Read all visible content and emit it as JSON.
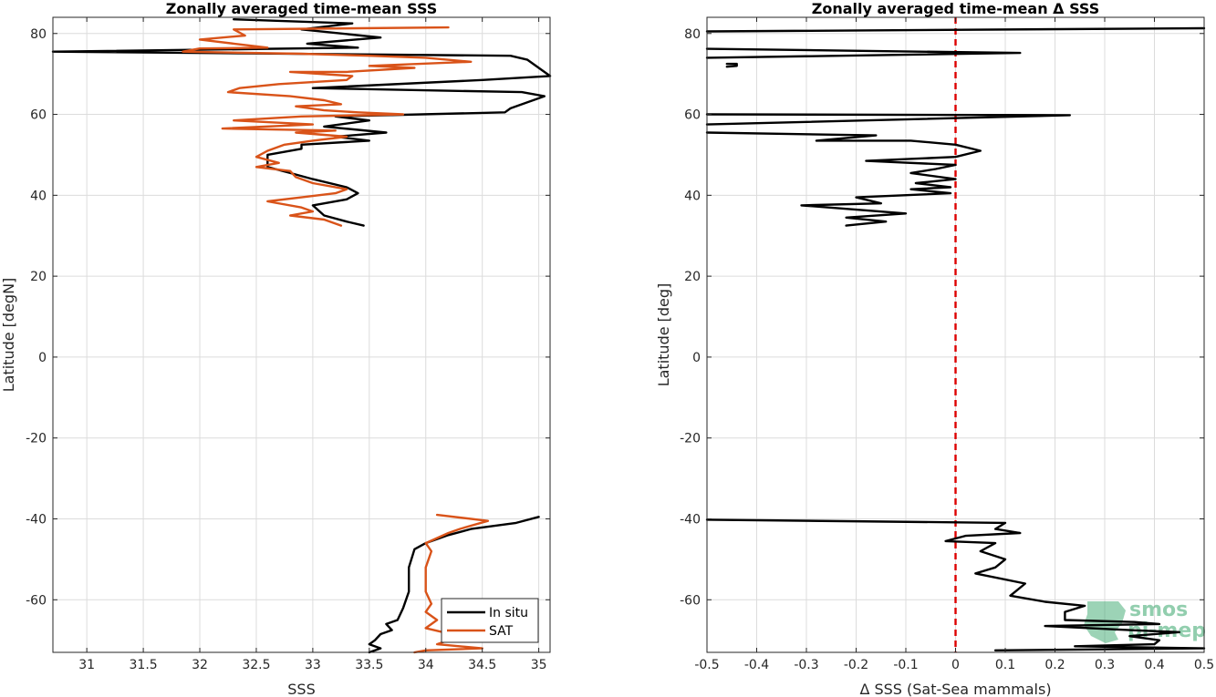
{
  "chart_data": [
    {
      "type": "line",
      "title": "Zonally averaged time-mean SSS",
      "xlabel": "SSS",
      "ylabel": "Latitude [degN]",
      "xlim": [
        30.7,
        35.1
      ],
      "ylim": [
        -73,
        84
      ],
      "xticks": [
        31,
        31.5,
        32,
        32.5,
        33,
        33.5,
        34,
        34.5,
        35
      ],
      "xtick_labels": [
        "31",
        "31.5",
        "32",
        "32.5",
        "33",
        "33.5",
        "34",
        "34.5",
        "35"
      ],
      "yticks": [
        -60,
        -40,
        -20,
        0,
        20,
        40,
        60,
        80
      ],
      "ytick_labels": [
        "-60",
        "-40",
        "-20",
        "0",
        "20",
        "40",
        "60",
        "80"
      ],
      "grid": true,
      "legend": "bottom-right",
      "series": [
        {
          "name": "In situ",
          "color": "#000000",
          "segments": [
            [
              [
                32.3,
                83.5
              ],
              [
                33.35,
                82.5
              ],
              [
                32.9,
                81
              ],
              [
                33.6,
                79
              ],
              [
                32.95,
                77.5
              ],
              [
                33.4,
                76.5
              ],
              [
                30.7,
                75.5
              ],
              [
                34.75,
                74.5
              ],
              [
                34.9,
                73.5
              ],
              [
                35.0,
                71.5
              ],
              [
                35.1,
                69.5
              ],
              [
                34.5,
                68.5
              ],
              [
                33.0,
                66.5
              ],
              [
                34.85,
                65.5
              ],
              [
                35.05,
                64.5
              ],
              [
                34.75,
                61.5
              ],
              [
                34.7,
                60.5
              ],
              [
                33.2,
                59.5
              ],
              [
                33.5,
                58.5
              ],
              [
                33.1,
                57
              ],
              [
                33.65,
                55.5
              ],
              [
                33.2,
                54.5
              ],
              [
                33.5,
                53.5
              ],
              [
                32.9,
                52.5
              ],
              [
                32.9,
                51.5
              ],
              [
                32.6,
                50
              ],
              [
                32.6,
                47
              ],
              [
                32.8,
                45.5
              ],
              [
                33.0,
                44
              ],
              [
                33.3,
                42
              ],
              [
                33.4,
                40.5
              ],
              [
                33.3,
                39
              ],
              [
                33.0,
                37.5
              ],
              [
                33.1,
                35
              ],
              [
                33.3,
                33.5
              ],
              [
                33.45,
                32.5
              ]
            ],
            [
              [
                35.0,
                -39.5
              ],
              [
                34.8,
                -41
              ],
              [
                34.4,
                -42.5
              ],
              [
                34.2,
                -44
              ],
              [
                34.0,
                -46
              ],
              [
                33.9,
                -47.5
              ],
              [
                33.85,
                -52
              ],
              [
                33.85,
                -55
              ],
              [
                33.85,
                -58
              ],
              [
                33.8,
                -62
              ],
              [
                33.75,
                -65
              ],
              [
                33.65,
                -66
              ],
              [
                33.7,
                -67.5
              ],
              [
                33.6,
                -68.5
              ],
              [
                33.55,
                -70
              ],
              [
                33.5,
                -71
              ],
              [
                33.6,
                -72
              ],
              [
                33.5,
                -73
              ]
            ]
          ]
        },
        {
          "name": "SAT",
          "color": "#d95319",
          "segments": [
            [
              [
                34.2,
                81.5
              ],
              [
                32.3,
                81
              ],
              [
                32.4,
                79.5
              ],
              [
                32.0,
                78.5
              ],
              [
                32.3,
                77.5
              ],
              [
                32.6,
                76.5
              ],
              [
                32.0,
                76.3
              ],
              [
                31.85,
                75.5
              ],
              [
                32.9,
                75.0
              ],
              [
                33.5,
                74.5
              ],
              [
                34.0,
                74.0
              ],
              [
                34.4,
                73.0
              ],
              [
                33.5,
                72
              ],
              [
                33.9,
                71.5
              ],
              [
                33.3,
                70.5
              ],
              [
                32.8,
                70.5
              ],
              [
                33.35,
                69.5
              ],
              [
                33.3,
                68.5
              ],
              [
                32.7,
                67.5
              ],
              [
                32.35,
                66.5
              ],
              [
                32.25,
                65.5
              ],
              [
                32.8,
                64.5
              ],
              [
                33.1,
                63.5
              ],
              [
                33.25,
                62.5
              ],
              [
                32.85,
                62
              ],
              [
                33.1,
                61
              ],
              [
                33.4,
                60.5
              ],
              [
                33.8,
                60
              ],
              [
                32.9,
                59.5
              ],
              [
                32.3,
                58.5
              ],
              [
                33.0,
                57.5
              ],
              [
                32.2,
                56.5
              ],
              [
                33.2,
                56
              ],
              [
                32.85,
                55.5
              ],
              [
                33.3,
                54.5
              ],
              [
                33.0,
                53.5
              ],
              [
                32.75,
                52.5
              ],
              [
                32.6,
                51
              ],
              [
                32.5,
                49.5
              ],
              [
                32.7,
                48
              ],
              [
                32.5,
                47
              ],
              [
                32.8,
                46
              ],
              [
                32.85,
                44.5
              ],
              [
                33.0,
                43
              ],
              [
                33.3,
                41.5
              ],
              [
                33.2,
                40.5
              ],
              [
                32.9,
                39.5
              ],
              [
                32.6,
                38.5
              ],
              [
                32.9,
                37
              ],
              [
                33.0,
                36
              ],
              [
                32.8,
                35
              ],
              [
                33.1,
                34
              ],
              [
                33.25,
                32.5
              ]
            ],
            [
              [
                34.1,
                -39
              ],
              [
                34.55,
                -40.5
              ],
              [
                34.3,
                -42.5
              ],
              [
                34.2,
                -43.5
              ],
              [
                34.0,
                -46
              ],
              [
                34.05,
                -48
              ],
              [
                34.0,
                -52
              ],
              [
                34.0,
                -55
              ],
              [
                34.0,
                -58
              ],
              [
                34.05,
                -61
              ],
              [
                34.0,
                -63
              ],
              [
                34.1,
                -65
              ],
              [
                34.0,
                -67
              ],
              [
                34.3,
                -69
              ],
              [
                34.1,
                -71
              ],
              [
                34.5,
                -72
              ],
              [
                34.0,
                -72.5
              ],
              [
                33.9,
                -73
              ]
            ]
          ]
        }
      ]
    },
    {
      "type": "line",
      "title": "Zonally averaged time-mean Δ SSS",
      "xlabel": "Δ SSS (Sat-Sea mammals)",
      "ylabel": "Latitude [deg]",
      "xlim": [
        -0.5,
        0.5
      ],
      "ylim": [
        -73,
        84
      ],
      "xticks": [
        -0.5,
        -0.4,
        -0.3,
        -0.2,
        -0.1,
        0,
        0.1,
        0.2,
        0.3,
        0.4,
        0.5
      ],
      "xtick_labels": [
        "-0.5",
        "-0.4",
        "-0.3",
        "-0.2",
        "-0.1",
        "0",
        "0.1",
        "0.2",
        "0.3",
        "0.4",
        "0.5"
      ],
      "yticks": [
        -60,
        -40,
        -20,
        0,
        20,
        40,
        60,
        80
      ],
      "ytick_labels": [
        "-60",
        "-40",
        "-20",
        "0",
        "20",
        "40",
        "60",
        "80"
      ],
      "grid": true,
      "reference_line": {
        "x": 0,
        "color": "#dd0000",
        "style": "dashed"
      },
      "series": [
        {
          "color": "#000000",
          "segments": [
            [
              [
                -0.5,
                80.5
              ],
              [
                0.5,
                81.3
              ]
            ],
            [
              [
                -0.5,
                76.2
              ],
              [
                0.13,
                75.2
              ],
              [
                -0.5,
                74.0
              ]
            ],
            [
              [
                -0.46,
                72.5
              ],
              [
                -0.44,
                72.5
              ],
              [
                -0.44,
                72.0
              ],
              [
                -0.46,
                71.8
              ]
            ],
            [
              [
                -0.5,
                60.0
              ],
              [
                0.23,
                59.8
              ],
              [
                -0.5,
                57.5
              ]
            ],
            [
              [
                -0.5,
                55.5
              ],
              [
                -0.16,
                54.8
              ],
              [
                -0.28,
                53.5
              ],
              [
                -0.09,
                53.5
              ],
              [
                0.0,
                52.5
              ],
              [
                0.05,
                51.0
              ],
              [
                0.0,
                49.5
              ],
              [
                -0.18,
                48.5
              ],
              [
                0.0,
                47.5
              ],
              [
                -0.04,
                46.5
              ],
              [
                -0.09,
                45.5
              ],
              [
                0.0,
                44.0
              ],
              [
                -0.08,
                43.0
              ],
              [
                -0.01,
                42.0
              ],
              [
                -0.09,
                41.5
              ],
              [
                -0.01,
                40.5
              ],
              [
                -0.2,
                39.5
              ],
              [
                -0.15,
                38.0
              ],
              [
                -0.31,
                37.5
              ],
              [
                -0.1,
                35.5
              ],
              [
                -0.22,
                34.5
              ],
              [
                -0.14,
                33.5
              ],
              [
                -0.22,
                32.5
              ]
            ],
            [
              [
                -0.5,
                -40.2
              ],
              [
                0.1,
                -41.0
              ],
              [
                0.08,
                -42.5
              ],
              [
                0.13,
                -43.5
              ],
              [
                0.02,
                -44.2
              ],
              [
                -0.02,
                -45.5
              ],
              [
                0.08,
                -46.0
              ],
              [
                0.05,
                -48.0
              ],
              [
                0.1,
                -50.0
              ],
              [
                0.08,
                -52.0
              ],
              [
                0.04,
                -53.5
              ],
              [
                0.14,
                -56.0
              ],
              [
                0.12,
                -58.0
              ],
              [
                0.11,
                -59.0
              ],
              [
                0.18,
                -60.5
              ],
              [
                0.26,
                -61.5
              ],
              [
                0.22,
                -63.0
              ],
              [
                0.22,
                -65.0
              ],
              [
                0.36,
                -65.5
              ],
              [
                0.41,
                -66.0
              ],
              [
                0.18,
                -66.5
              ],
              [
                0.35,
                -67.5
              ],
              [
                0.45,
                -68.0
              ],
              [
                0.35,
                -69.0
              ],
              [
                0.41,
                -70.0
              ],
              [
                0.4,
                -71.0
              ],
              [
                0.24,
                -71.5
              ],
              [
                0.5,
                -72.0
              ],
              [
                0.08,
                -72.5
              ]
            ]
          ]
        }
      ],
      "watermark": {
        "lines": [
          "smos",
          "pi-mep"
        ],
        "color": "#3aa76d"
      }
    }
  ]
}
